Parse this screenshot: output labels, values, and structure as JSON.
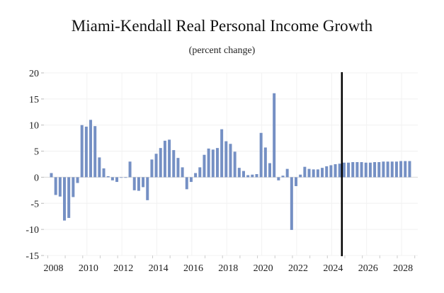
{
  "chart_data": {
    "type": "bar",
    "title": "Miami-Kendall Real Personal Income Growth",
    "subtitle": "(percent change)",
    "xlabel": "",
    "ylabel": "",
    "frequency": "quarterly",
    "start": "2008Q1",
    "ylim": [
      -15,
      20
    ],
    "yticks": [
      20,
      15,
      10,
      5,
      0,
      -5,
      -10,
      -15
    ],
    "ytick_labels": [
      "20",
      "15",
      "10",
      "5",
      "0",
      "-5",
      "-10",
      "-15"
    ],
    "xtick_labels": [
      "2008",
      "2010",
      "2012",
      "2014",
      "2016",
      "2018",
      "2020",
      "2022",
      "2024",
      "2026",
      "2028"
    ],
    "grid": true,
    "legend": "none",
    "bar_color": "#7590c4",
    "forecast_line": {
      "position": "2024Q3/2024Q4",
      "color": "#000000"
    },
    "series": [
      {
        "name": "Real Personal Income Growth",
        "values": [
          0.8,
          -3.4,
          -3.7,
          -8.3,
          -7.8,
          -3.8,
          -1.1,
          10.0,
          9.7,
          11.0,
          9.8,
          3.8,
          1.7,
          0.2,
          -0.6,
          -0.9,
          -0.1,
          -0.1,
          3.0,
          -2.5,
          -2.6,
          -1.9,
          -4.4,
          3.4,
          4.5,
          5.6,
          7.0,
          7.2,
          5.2,
          3.7,
          1.9,
          -2.3,
          -0.9,
          0.8,
          1.9,
          4.3,
          5.5,
          5.3,
          5.6,
          9.2,
          6.9,
          6.4,
          4.9,
          1.8,
          1.2,
          0.4,
          0.5,
          0.6,
          8.5,
          5.7,
          2.7,
          16.1,
          -0.6,
          0.3,
          1.6,
          -10.1,
          -1.7,
          0.5,
          2.0,
          1.6,
          1.5,
          1.5,
          1.8,
          2.1,
          2.3,
          2.5,
          2.6,
          2.8,
          2.8,
          2.9,
          2.9,
          2.9,
          2.8,
          2.8,
          2.9,
          2.9,
          3.0,
          3.0,
          3.0,
          3.0,
          3.1,
          3.1,
          3.1
        ]
      }
    ]
  }
}
